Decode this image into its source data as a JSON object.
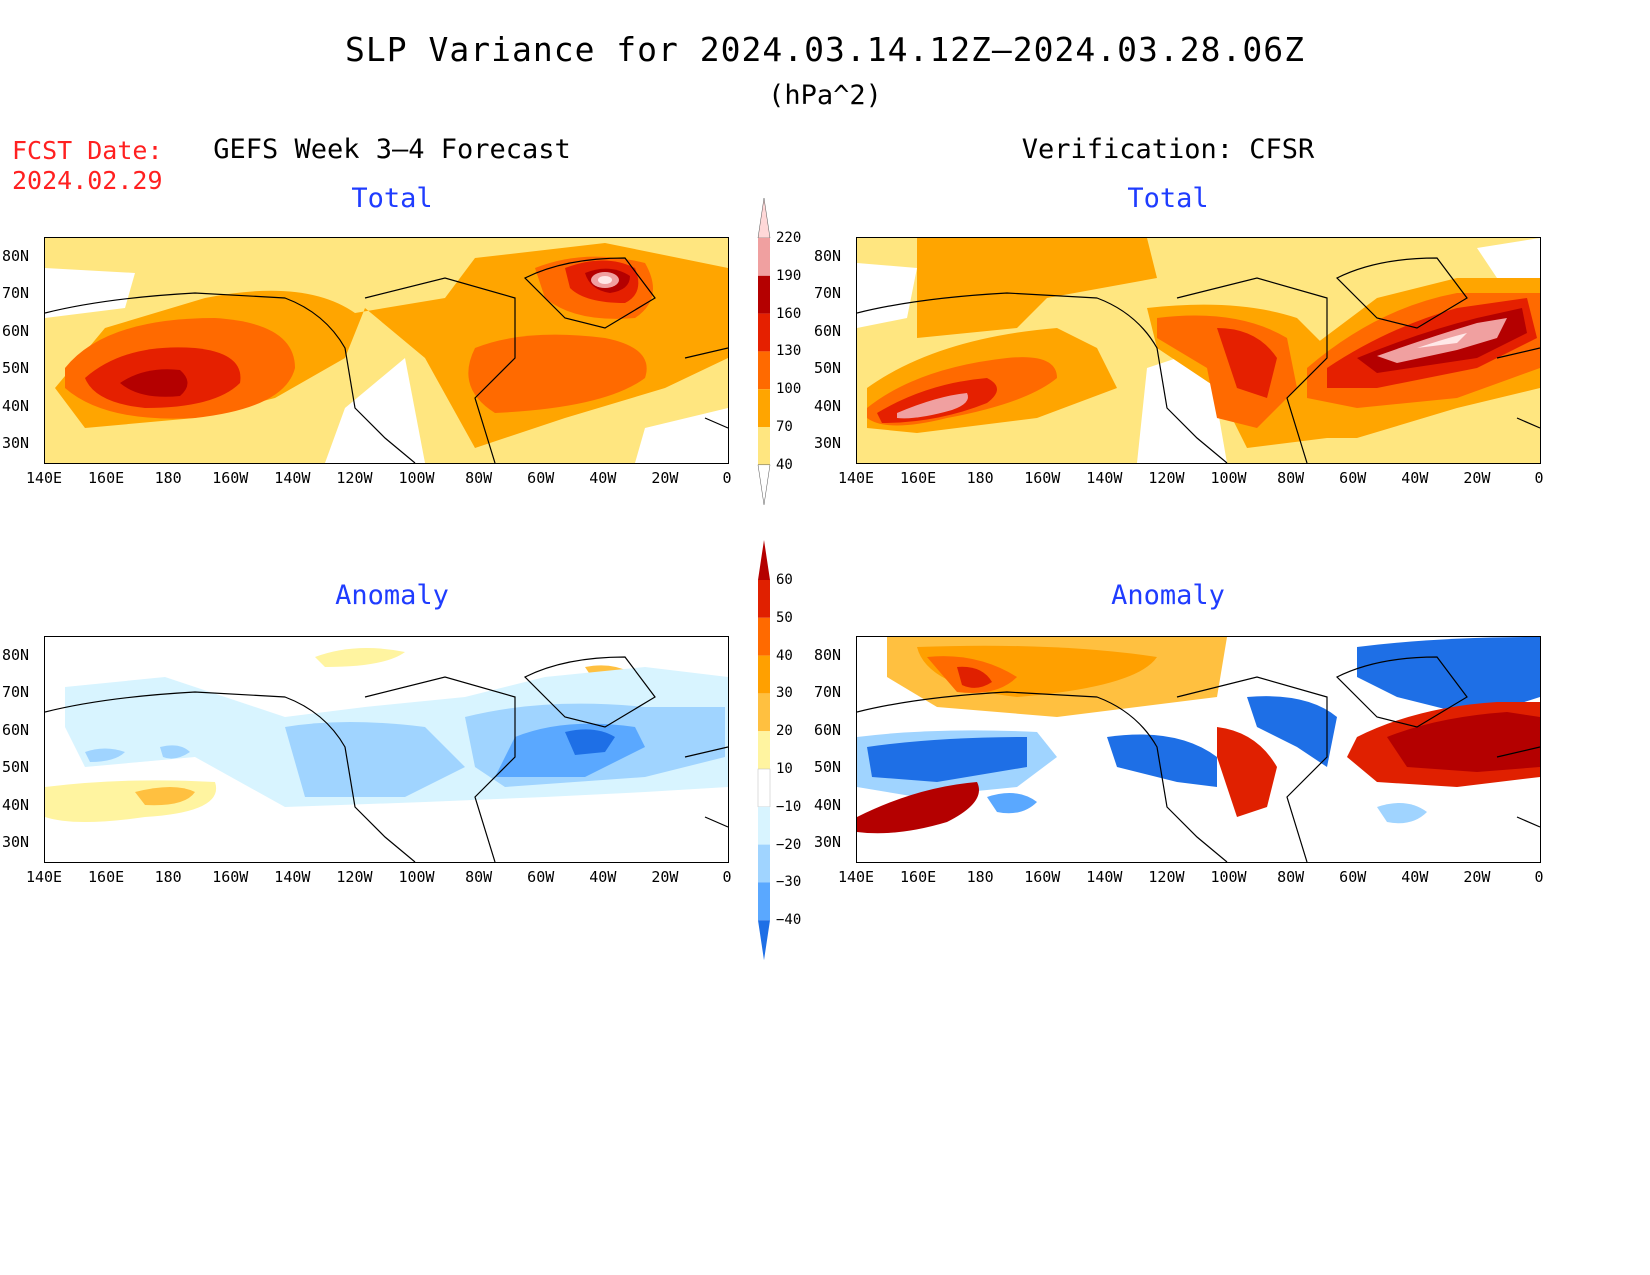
{
  "title": "SLP Variance for 2024.03.14.12Z–2024.03.28.06Z",
  "units": "(hPa^2)",
  "forecast_date": {
    "label": "FCST Date:",
    "value": "2024.02.29"
  },
  "columns": {
    "left": "GEFS Week 3–4 Forecast",
    "right": "Verification: CFSR"
  },
  "panels": {
    "forecast_total": "Total",
    "forecast_anomaly": "Anomaly",
    "verification_total": "Total",
    "verification_anomaly": "Anomaly"
  },
  "axes": {
    "lat_labels": [
      "80N",
      "70N",
      "60N",
      "50N",
      "40N",
      "30N"
    ],
    "lon_labels": [
      "140E",
      "160E",
      "180",
      "160W",
      "140W",
      "120W",
      "100W",
      "80W",
      "60W",
      "40W",
      "20W",
      "0"
    ]
  },
  "colorbars": {
    "total": {
      "levels": [
        "40",
        "70",
        "100",
        "130",
        "160",
        "190",
        "220"
      ],
      "colors": [
        "#ffe680",
        "#ffa500",
        "#ff6a00",
        "#e52000",
        "#b40000",
        "#f0a0a0",
        "#ffd8d8"
      ]
    },
    "anomaly": {
      "levels": [
        "60",
        "50",
        "40",
        "30",
        "20",
        "10",
        "−10",
        "−20",
        "−30",
        "−40"
      ],
      "colors": [
        "#b40000",
        "#e02000",
        "#ff6a00",
        "#ffa000",
        "#ffc040",
        "#fff4a0",
        "#ffffff",
        "#d8f4ff",
        "#a0d4ff",
        "#5aa8ff",
        "#1e6fe6"
      ]
    }
  },
  "palette": {
    "t1": "#ffe680",
    "t2": "#ffa500",
    "t3": "#ff6a00",
    "t4": "#e52000",
    "t5": "#b40000",
    "t6": "#f0a0a0",
    "t7": "#ffe8e8",
    "a_pos1": "#fff4a0",
    "a_pos2": "#ffc040",
    "a_pos3": "#ffa000",
    "a_pos4": "#ff6a00",
    "a_pos5": "#e02000",
    "a_pos6": "#b40000",
    "a_neg1": "#d8f4ff",
    "a_neg2": "#a0d4ff",
    "a_neg3": "#5aa8ff",
    "a_neg4": "#1e6fe6"
  }
}
